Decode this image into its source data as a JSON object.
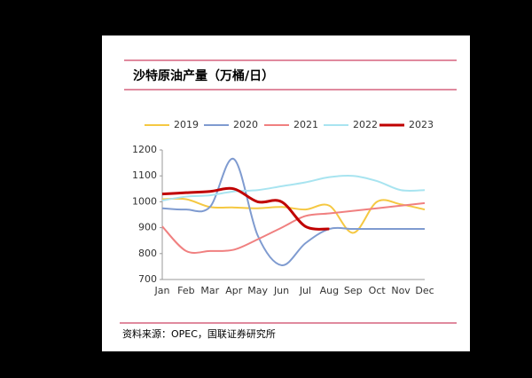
{
  "chart_data": {
    "type": "line",
    "title": "沙特原油产量（万桶/日）",
    "source": "资料来源：OPEC，国联证券研究所",
    "categories": [
      "Jan",
      "Feb",
      "Mar",
      "Apr",
      "May",
      "Jun",
      "Jul",
      "Aug",
      "Sep",
      "Oct",
      "Nov",
      "Dec"
    ],
    "series": [
      {
        "name": "2019",
        "color": "#f5c842",
        "values": [
          1010,
          1010,
          980,
          978,
          975,
          980,
          970,
          985,
          880,
          1000,
          990,
          970
        ]
      },
      {
        "name": "2020",
        "color": "#7f9bd0",
        "values": [
          975,
          970,
          980,
          1165,
          870,
          755,
          840,
          895,
          895,
          895,
          895,
          895
        ]
      },
      {
        "name": "2021",
        "color": "#f08080",
        "values": [
          905,
          810,
          810,
          815,
          855,
          900,
          945,
          955,
          965,
          975,
          985,
          995
        ]
      },
      {
        "name": "2022",
        "color": "#a8e4f0",
        "values": [
          1005,
          1020,
          1025,
          1040,
          1045,
          1060,
          1075,
          1095,
          1100,
          1080,
          1045,
          1045
        ]
      },
      {
        "name": "2023",
        "color": "#c00000",
        "values": [
          1030,
          1035,
          1040,
          1050,
          1000,
          1000,
          905,
          895,
          null,
          null,
          null,
          null
        ]
      }
    ],
    "ylim": [
      700,
      1200
    ],
    "yticks": [
      700,
      800,
      900,
      1000,
      1100,
      1200
    ],
    "legend": "top"
  }
}
